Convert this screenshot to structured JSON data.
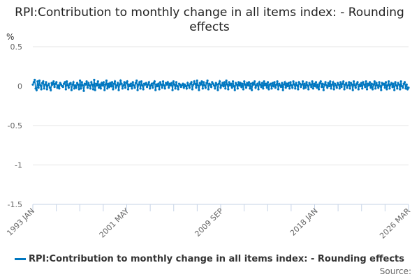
{
  "chart_data": {
    "type": "line",
    "title": "RPI:Contribution to monthly change in all items index: - Rounding effects",
    "ylabel": "%",
    "xlabel": "",
    "ylim": [
      -1.5,
      0.5
    ],
    "yticks": [
      "0.5",
      "0",
      "-0.5",
      "-1",
      "-1.5"
    ],
    "ytick_values": [
      0.5,
      0,
      -0.5,
      -1,
      -1.5
    ],
    "xtick_labels": [
      "1993 JAN",
      "2001 MAY",
      "2009 SEP",
      "2018 JAN",
      "2026 MAR"
    ],
    "xtick_indices": [
      0,
      100,
      200,
      300,
      398
    ],
    "grid": true,
    "legend_position": "bottom",
    "series": [
      {
        "name": "RPI:Contribution to monthly change in all items index: - Rounding effects",
        "color": "#0077c0",
        "start": "1993 JAN",
        "values": [
          0.02,
          0.05,
          0.08,
          -0.03,
          -0.05,
          0.06,
          -0.02,
          0.07,
          0.01,
          -0.04,
          0.04,
          0.06,
          -0.03,
          0.02,
          0.05,
          -0.04,
          0.01,
          0.03,
          -0.02,
          -0.05,
          0.04,
          0.02,
          0.06,
          -0.01,
          0.03,
          0.05,
          -0.02,
          0.01,
          -0.03,
          0.04,
          0.02,
          0.0,
          -0.01,
          0.03,
          0.05,
          -0.04,
          0.06,
          0.01,
          -0.02,
          0.03,
          0.04,
          -0.05,
          0.02,
          0.05,
          -0.03,
          0.01,
          -0.02,
          0.04,
          0.02,
          -0.04,
          0.07,
          -0.03,
          0.05,
          0.01,
          -0.06,
          0.03,
          0.02,
          0.06,
          -0.02,
          0.04,
          0.01,
          -0.03,
          0.05,
          0.02,
          -0.04,
          0.08,
          -0.05,
          0.03,
          0.01,
          0.06,
          -0.02,
          0.02,
          -0.03,
          0.04,
          0.01,
          0.05,
          -0.05,
          0.02,
          0.07,
          -0.03,
          0.03,
          -0.01,
          0.04,
          0.0,
          0.05,
          -0.04,
          0.03,
          0.06,
          -0.02,
          0.01,
          0.04,
          -0.05,
          0.02,
          0.07,
          0.03,
          -0.03,
          0.01,
          0.05,
          -0.02,
          0.04,
          0.06,
          -0.04,
          0.02,
          0.0,
          0.03,
          -0.03,
          0.05,
          0.01,
          -0.02,
          0.04,
          0.07,
          -0.05,
          0.02,
          0.05,
          -0.03,
          0.06,
          0.01,
          -0.04,
          0.03,
          0.02,
          0.04,
          -0.01,
          0.02,
          0.05,
          -0.03,
          0.01,
          0.03,
          -0.02,
          0.04,
          0.06,
          -0.05,
          0.02,
          0.0,
          0.03,
          -0.04,
          0.05,
          0.02,
          -0.02,
          0.06,
          0.01,
          -0.03,
          0.04,
          0.02,
          0.05,
          -0.02,
          0.03,
          0.01,
          0.04,
          -0.05,
          0.06,
          0.02,
          -0.03,
          0.05,
          0.0,
          -0.04,
          0.03,
          0.02,
          -0.01,
          0.01,
          0.03,
          -0.02,
          0.02,
          0.0,
          -0.03,
          0.04,
          0.01,
          -0.02,
          0.03,
          0.05,
          -0.04,
          0.02,
          0.06,
          0.03,
          -0.02,
          0.07,
          0.01,
          -0.05,
          0.04,
          0.02,
          0.06,
          -0.03,
          0.05,
          0.01,
          -0.02,
          0.04,
          0.07,
          -0.04,
          0.03,
          0.02,
          -0.01,
          0.05,
          0.03,
          0.01,
          -0.03,
          0.04,
          0.02,
          -0.05,
          0.03,
          0.06,
          -0.02,
          0.01,
          0.04,
          0.0,
          0.05,
          -0.03,
          0.07,
          0.02,
          -0.04,
          0.05,
          0.01,
          0.03,
          -0.02,
          0.06,
          0.0,
          -0.05,
          0.04,
          0.02,
          -0.03,
          0.05,
          0.01,
          0.04,
          -0.01,
          0.03,
          -0.04,
          0.06,
          0.02,
          -0.02,
          0.04,
          0.01,
          0.05,
          -0.03,
          0.03,
          -0.05,
          0.04,
          0.02,
          0.06,
          -0.02,
          0.01,
          0.03,
          -0.04,
          0.05,
          0.02,
          -0.01,
          0.04,
          -0.03,
          0.06,
          0.01,
          0.03,
          -0.02,
          0.05,
          -0.04,
          0.02,
          0.03,
          -0.03,
          0.04,
          0.0,
          0.05,
          -0.02,
          0.02,
          0.06,
          -0.04,
          0.03,
          0.01,
          -0.01,
          0.04,
          -0.05,
          0.02,
          0.05,
          -0.02,
          0.03,
          0.0,
          0.04,
          -0.03,
          0.05,
          0.01,
          -0.02,
          0.06,
          0.02,
          -0.03,
          0.04,
          0.01,
          -0.04,
          0.05,
          0.03,
          -0.01,
          0.02,
          0.06,
          -0.03,
          0.03,
          -0.02,
          0.05,
          0.01,
          -0.04,
          0.04,
          0.02,
          -0.01,
          0.06,
          -0.03,
          0.03,
          0.0,
          0.05,
          -0.02,
          0.02,
          -0.04,
          0.04,
          0.06,
          -0.01,
          0.03,
          -0.05,
          0.02,
          0.05,
          0.01,
          -0.02,
          0.04,
          0.0,
          0.06,
          -0.03,
          0.02,
          0.05,
          -0.04,
          0.03,
          0.01,
          -0.02,
          0.04,
          0.02,
          -0.03,
          0.05,
          -0.01,
          0.03,
          0.06,
          -0.04,
          0.02,
          0.04,
          -0.02,
          0.01,
          0.05,
          -0.03,
          0.04,
          0.02,
          -0.05,
          0.06,
          0.01,
          -0.02,
          0.03,
          0.05,
          -0.04,
          0.02,
          0.0,
          0.04,
          -0.03,
          0.05,
          0.02,
          -0.01,
          0.06,
          -0.04,
          0.03,
          0.01,
          0.05,
          -0.02,
          0.03,
          -0.04,
          0.02,
          0.06,
          -0.03,
          0.04,
          0.01,
          -0.02,
          0.05,
          0.0,
          -0.05,
          0.04,
          0.02,
          0.03,
          -0.02,
          0.05,
          -0.04,
          0.01,
          0.06,
          -0.03,
          0.02,
          0.04,
          -0.01,
          0.03,
          -0.05,
          0.05,
          0.01,
          -0.03,
          0.04,
          0.02,
          -0.04,
          0.06,
          0.0,
          -0.02,
          0.03,
          0.05,
          -0.03,
          0.02,
          -0.04,
          -0.02
        ]
      }
    ],
    "source_label": "Source:"
  }
}
